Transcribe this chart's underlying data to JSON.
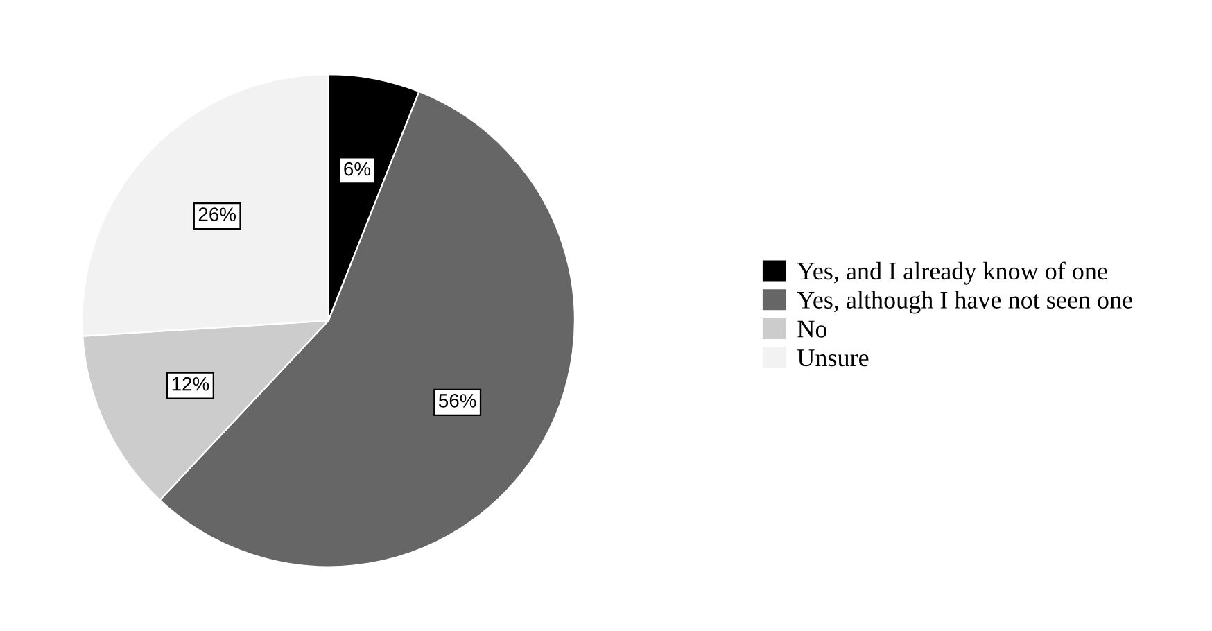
{
  "chart_data": {
    "type": "pie",
    "categories": [
      "Yes, and I already know of one",
      "Yes, although I have not seen one",
      "No",
      "Unsure"
    ],
    "values": [
      6,
      56,
      12,
      26
    ],
    "value_labels": [
      "6%",
      "56%",
      "12%",
      "26%"
    ],
    "colors": [
      "#000000",
      "#666666",
      "#cccccc",
      "#f2f2f2"
    ],
    "legend": "right"
  }
}
